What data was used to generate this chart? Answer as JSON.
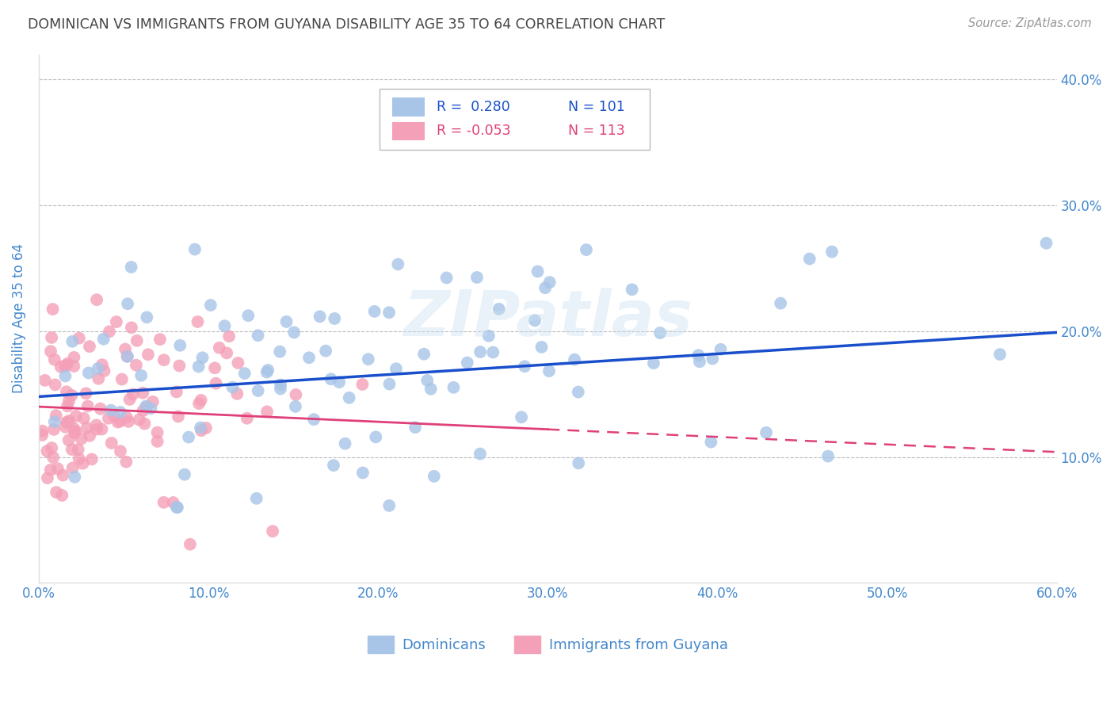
{
  "title": "DOMINICAN VS IMMIGRANTS FROM GUYANA DISABILITY AGE 35 TO 64 CORRELATION CHART",
  "source": "Source: ZipAtlas.com",
  "ylabel": "Disability Age 35 to 64",
  "xlim": [
    0.0,
    0.6
  ],
  "ylim": [
    0.0,
    0.42
  ],
  "xticks": [
    0.0,
    0.1,
    0.2,
    0.3,
    0.4,
    0.5,
    0.6
  ],
  "xticklabels": [
    "0.0%",
    "10.0%",
    "20.0%",
    "30.0%",
    "40.0%",
    "50.0%",
    "60.0%"
  ],
  "yticks_right": [
    0.1,
    0.2,
    0.3,
    0.4
  ],
  "yticklabels_right": [
    "10.0%",
    "20.0%",
    "30.0%",
    "40.0%"
  ],
  "legend_r1": "R =  0.280",
  "legend_n1": "N = 101",
  "legend_r2": "R = -0.053",
  "legend_n2": "N = 113",
  "dominican_color": "#a8c5e8",
  "guyana_color": "#f4a0b8",
  "line_dominican_color": "#1a4fcc",
  "line_guyana_color": "#e0407a",
  "watermark": "ZIPatlas",
  "background_color": "#ffffff",
  "grid_color": "#bbbbbb",
  "tick_color": "#4488cc",
  "title_color": "#444444",
  "dominican_label": "Dominicans",
  "guyana_label": "Immigrants from Guyana",
  "dominican_slope": 0.085,
  "dominican_intercept": 0.148,
  "guyana_slope": -0.06,
  "guyana_intercept": 0.14,
  "seed_dominican": 42,
  "seed_guyana": 99
}
